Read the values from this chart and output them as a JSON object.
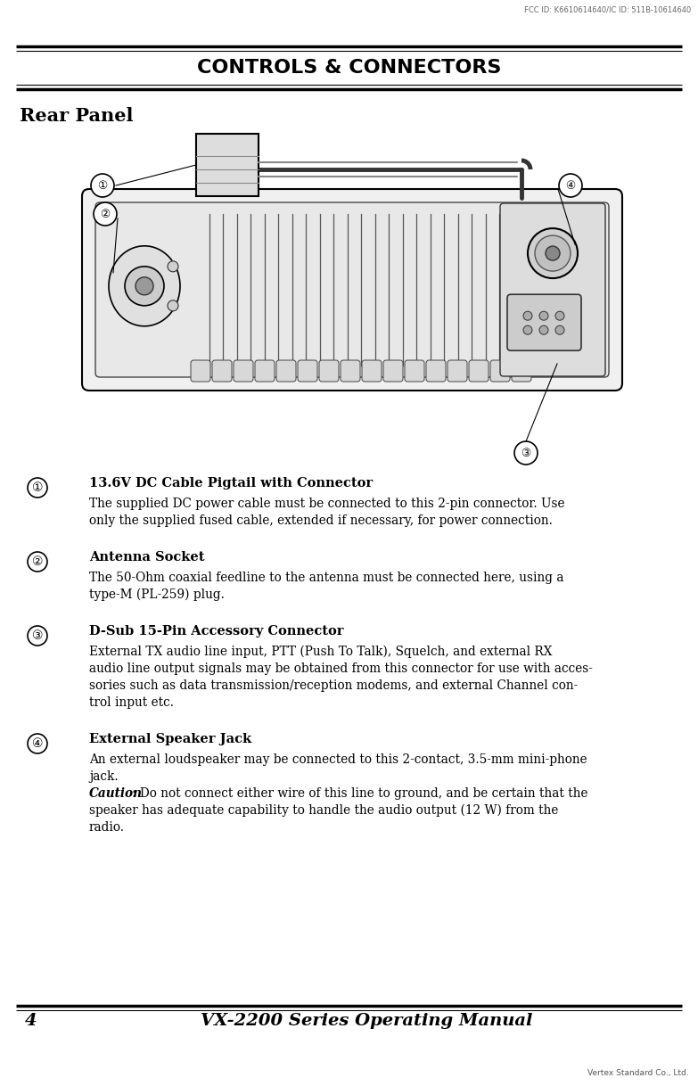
{
  "page_width": 7.83,
  "page_height": 12.18,
  "bg_color": "#ffffff",
  "top_fcc_text": "FCC ID: K6610614640/IC ID: 511B-10614640",
  "header_title": "CONTROLS & CONNECTORS",
  "section_title": "Rear Panel",
  "items": [
    {
      "number": "①",
      "bold_text": "13.6V DC Cable Pigtail with Connector",
      "body_lines": [
        "The supplied DC power cable must be connected to this 2-pin connector. Use",
        "only the supplied fused cable, extended if necessary, for power connection."
      ]
    },
    {
      "number": "②",
      "bold_text": "Antenna Socket",
      "body_lines": [
        "The 50-Ohm coaxial feedline to the antenna must be connected here, using a",
        "type-M (PL-259) plug."
      ]
    },
    {
      "number": "③",
      "bold_text": "D-Sub 15-Pin Accessory Connector",
      "body_lines": [
        "External TX audio line input, PTT (Push To Talk), Squelch, and external RX",
        "audio line output signals may be obtained from this connector for use with acces-",
        "sories such as data transmission/reception modems, and external Channel con-",
        "trol input etc."
      ]
    },
    {
      "number": "④",
      "bold_text": "External Speaker Jack",
      "body_lines": [
        "An external loudspeaker may be connected to this 2-contact, 3.5-mm mini-phone",
        "jack."
      ],
      "caution_lines": [
        "Caution: Do not connect either wire of this line to ground, and be certain that the",
        "speaker has adequate capability to handle the audio output (12 W) from the",
        "radio."
      ]
    }
  ],
  "footer_page": "4",
  "footer_title": "VX-2200 Series Operating Manual",
  "footer_company": "Vertex Standard Co., Ltd."
}
